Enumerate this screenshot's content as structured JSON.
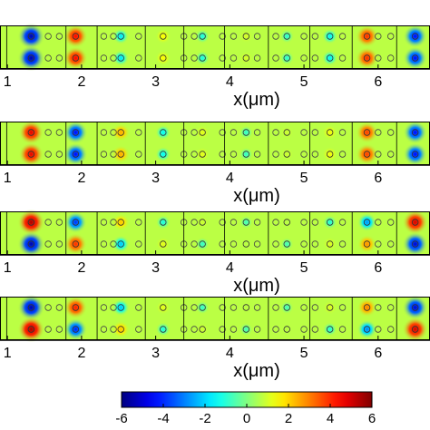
{
  "chart_data": {
    "type": "heatmap",
    "panel_count": 4,
    "x_axis": {
      "label": "x(μm)",
      "ticks": [
        1,
        2,
        3,
        4,
        5,
        6
      ],
      "range": [
        0.9,
        6.7
      ]
    },
    "colorbar": {
      "range": [
        -6,
        6
      ],
      "ticks": [
        -6,
        -4,
        -2,
        0,
        2,
        4,
        6
      ],
      "colormap": "jet"
    },
    "cell_boundaries_um": [
      0.99,
      1.79,
      2.21,
      2.86,
      3.38,
      3.93,
      4.52,
      5.08,
      5.65,
      6.25
    ],
    "panels": [
      {
        "name": "panel-1",
        "spots": [
          {
            "x": 1.32,
            "top": -5.5,
            "bottom": -5.5
          },
          {
            "x": 1.92,
            "top": 4.5,
            "bottom": 4.5
          },
          {
            "x": 2.53,
            "top": -1.8,
            "bottom": -1.8
          },
          {
            "x": 3.1,
            "top": 1.5,
            "bottom": 1.5
          },
          {
            "x": 3.63,
            "top": -1.2,
            "bottom": -1.2
          },
          {
            "x": 4.22,
            "top": 1.0,
            "bottom": 1.0
          },
          {
            "x": 4.77,
            "top": -1.0,
            "bottom": -1.0
          },
          {
            "x": 5.35,
            "top": -1.6,
            "bottom": -1.6
          },
          {
            "x": 5.85,
            "top": 4.0,
            "bottom": 4.0
          },
          {
            "x": 6.5,
            "top": -4.5,
            "bottom": -4.5
          }
        ]
      },
      {
        "name": "panel-2",
        "spots": [
          {
            "x": 1.32,
            "top": 4.8,
            "bottom": 4.8
          },
          {
            "x": 1.92,
            "top": -4.5,
            "bottom": -4.5
          },
          {
            "x": 2.53,
            "top": 2.5,
            "bottom": 2.5
          },
          {
            "x": 3.1,
            "top": -1.5,
            "bottom": -1.5
          },
          {
            "x": 3.63,
            "top": 1.2,
            "bottom": 1.2
          },
          {
            "x": 4.22,
            "top": -0.9,
            "bottom": -0.9
          },
          {
            "x": 4.77,
            "top": 0.9,
            "bottom": 0.9
          },
          {
            "x": 5.35,
            "top": 1.4,
            "bottom": 1.4
          },
          {
            "x": 5.85,
            "top": 3.8,
            "bottom": 3.8
          },
          {
            "x": 6.5,
            "top": -4.5,
            "bottom": -4.5
          }
        ]
      },
      {
        "name": "panel-3",
        "spots": [
          {
            "x": 1.32,
            "top": 5.5,
            "bottom": -5.5
          },
          {
            "x": 1.92,
            "top": -4.0,
            "bottom": 4.0
          },
          {
            "x": 2.53,
            "top": 2.2,
            "bottom": -2.2
          },
          {
            "x": 3.1,
            "top": -1.2,
            "bottom": 1.2
          },
          {
            "x": 3.63,
            "top": 0.9,
            "bottom": -0.9
          },
          {
            "x": 4.22,
            "top": -0.7,
            "bottom": 0.7
          },
          {
            "x": 4.77,
            "top": 0.7,
            "bottom": -0.7
          },
          {
            "x": 5.35,
            "top": -1.1,
            "bottom": 1.1
          },
          {
            "x": 5.85,
            "top": -2.8,
            "bottom": 2.8
          },
          {
            "x": 6.5,
            "top": 5.0,
            "bottom": -5.0
          }
        ]
      },
      {
        "name": "panel-4",
        "spots": [
          {
            "x": 1.32,
            "top": -5.5,
            "bottom": 5.5
          },
          {
            "x": 1.92,
            "top": 4.2,
            "bottom": -4.2
          },
          {
            "x": 2.53,
            "top": -2.2,
            "bottom": 2.2
          },
          {
            "x": 3.1,
            "top": 1.2,
            "bottom": -1.2
          },
          {
            "x": 3.63,
            "top": -0.9,
            "bottom": 0.9
          },
          {
            "x": 4.22,
            "top": 0.7,
            "bottom": -0.7
          },
          {
            "x": 4.77,
            "top": -0.7,
            "bottom": 0.7
          },
          {
            "x": 5.35,
            "top": 1.1,
            "bottom": -1.1
          },
          {
            "x": 5.85,
            "top": 3.0,
            "bottom": -3.0
          },
          {
            "x": 6.5,
            "top": -5.0,
            "bottom": 5.0
          }
        ]
      }
    ],
    "hole_positions_um": [
      1.55,
      1.7,
      2.3,
      2.43,
      2.77,
      3.38,
      3.52,
      3.9,
      4.05,
      4.37,
      4.62,
      5.0,
      5.15,
      5.52,
      6.0,
      6.17
    ]
  }
}
